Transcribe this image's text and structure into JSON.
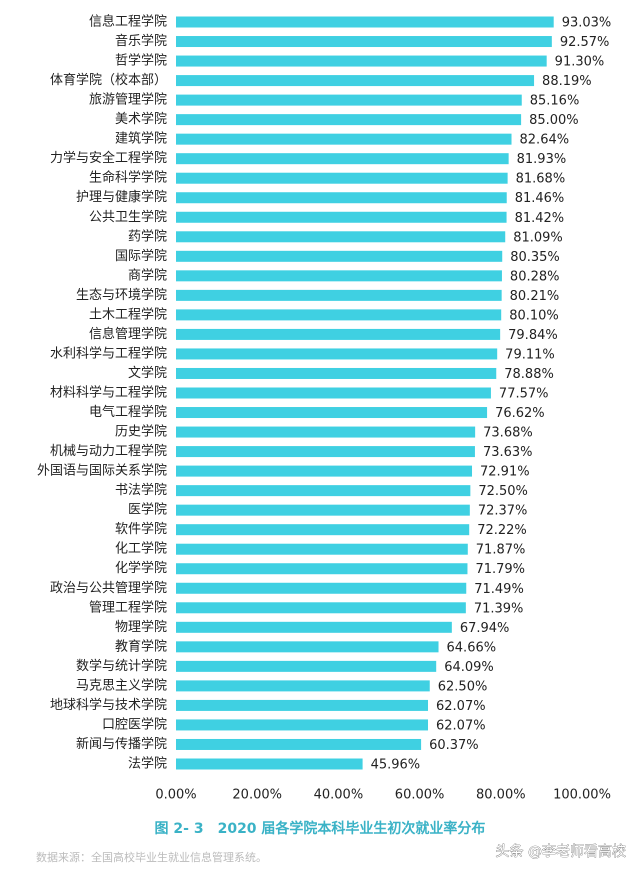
{
  "chart_data": {
    "type": "bar",
    "orientation": "horizontal",
    "categories": [
      "信息工程学院",
      "音乐学院",
      "哲学学院",
      "体育学院（校本部）",
      "旅游管理学院",
      "美术学院",
      "建筑学院",
      "力学与安全工程学院",
      "生命科学学院",
      "护理与健康学院",
      "公共卫生学院",
      "药学院",
      "国际学院",
      "商学院",
      "生态与环境学院",
      "土木工程学院",
      "信息管理学院",
      "水利科学与工程学院",
      "文学院",
      "材料科学与工程学院",
      "电气工程学院",
      "历史学院",
      "机械与动力工程学院",
      "外国语与国际关系学院",
      "书法学院",
      "医学院",
      "软件学院",
      "化工学院",
      "化学学院",
      "政治与公共管理学院",
      "管理工程学院",
      "物理学院",
      "教育学院",
      "数学与统计学院",
      "马克思主义学院",
      "地球科学与技术学院",
      "口腔医学院",
      "新闻与传播学院",
      "法学院"
    ],
    "values": [
      93.03,
      92.57,
      91.3,
      88.19,
      85.16,
      85.0,
      82.64,
      81.93,
      81.68,
      81.46,
      81.42,
      81.09,
      80.35,
      80.28,
      80.21,
      80.1,
      79.84,
      79.11,
      78.88,
      77.57,
      76.62,
      73.68,
      73.63,
      72.91,
      72.5,
      72.37,
      72.22,
      71.87,
      71.79,
      71.49,
      71.39,
      67.94,
      64.66,
      64.09,
      62.5,
      62.07,
      62.07,
      60.37,
      45.96
    ],
    "value_labels": [
      "93.03%",
      "92.57%",
      "91.30%",
      "88.19%",
      "85.16%",
      "85.00%",
      "82.64%",
      "81.93%",
      "81.68%",
      "81.46%",
      "81.42%",
      "81.09%",
      "80.35%",
      "80.28%",
      "80.21%",
      "80.10%",
      "79.84%",
      "79.11%",
      "78.88%",
      "77.57%",
      "76.62%",
      "73.68%",
      "73.63%",
      "72.91%",
      "72.50%",
      "72.37%",
      "72.22%",
      "71.87%",
      "71.79%",
      "71.49%",
      "71.39%",
      "67.94%",
      "64.66%",
      "64.09%",
      "62.50%",
      "62.07%",
      "62.07%",
      "60.37%",
      "45.96%"
    ],
    "color": "#3fd0e2",
    "xlim": [
      0,
      100
    ],
    "xticks": [
      {
        "value": 0,
        "label": "0.00%"
      },
      {
        "value": 20,
        "label": "20.00%"
      },
      {
        "value": 40,
        "label": "40.00%"
      },
      {
        "value": 60,
        "label": "60.00%"
      },
      {
        "value": 80,
        "label": "80.00%"
      },
      {
        "value": 100,
        "label": "100.00%"
      }
    ],
    "caption": "图 2- 3　2020 届各学院本科毕业生初次就业率分布",
    "source": "数据来源：全国高校毕业生就业信息管理系统。",
    "watermark": "头条 @李老师看高校"
  }
}
